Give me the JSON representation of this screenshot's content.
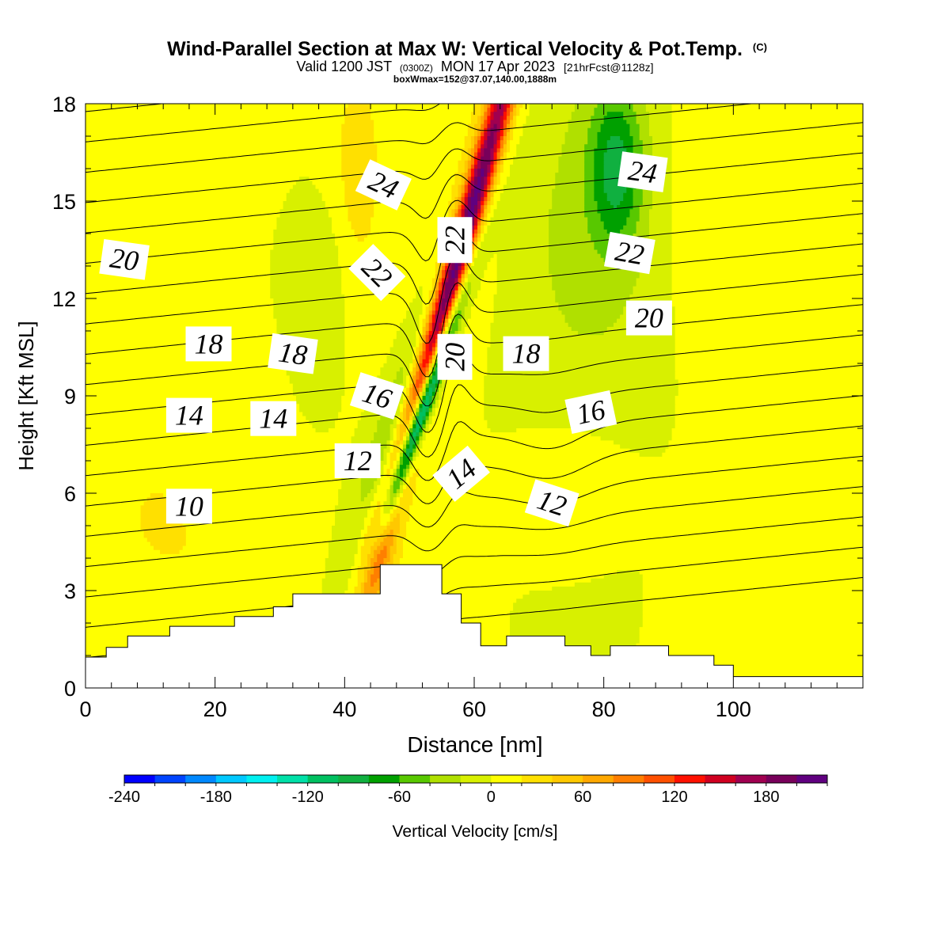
{
  "chart_data": {
    "type": "heatmap",
    "title": {
      "main": "Wind-Parallel Section at Max W: Vertical Velocity & Pot.Temp.",
      "copyright": "(C)",
      "valid_part1": "Valid 1200 JST",
      "valid_zulu": "(0300Z)",
      "valid_part2": "MON 17 Apr 2023",
      "forecast": "[21hrFcst@1128z]",
      "box": "boxWmax=152@37.07,140.00,1888m"
    },
    "xlabel": "Distance [nm]",
    "ylabel": "Height [Kft MSL]",
    "xlim": [
      0,
      120
    ],
    "ylim": [
      0,
      18
    ],
    "xticks": [
      "0",
      "20",
      "40",
      "60",
      "80",
      "100"
    ],
    "xtick_values": [
      0,
      20,
      40,
      60,
      80,
      100
    ],
    "yticks": [
      "0",
      "3",
      "6",
      "9",
      "12",
      "15",
      "18"
    ],
    "ytick_values": [
      0,
      3,
      6,
      9,
      12,
      15,
      18
    ],
    "colorbar": {
      "label": "Vertical Velocity [cm/s]",
      "min": -240,
      "max": 200,
      "step": 20,
      "tick_labels": [
        "-240",
        "-180",
        "-120",
        "-60",
        "0",
        "60",
        "120",
        "180"
      ],
      "tick_values": [
        -240,
        -180,
        -120,
        -60,
        0,
        60,
        120,
        180
      ],
      "colors": [
        "#0000ff",
        "#0044ff",
        "#0088ff",
        "#00c8ff",
        "#00f0f0",
        "#00e0a8",
        "#00c060",
        "#10b040",
        "#00a000",
        "#58c800",
        "#b0e000",
        "#d8f000",
        "#ffff00",
        "#ffe000",
        "#ffc800",
        "#ffa800",
        "#ff7f00",
        "#ff5000",
        "#ff1000",
        "#d00020",
        "#a00050",
        "#78005a",
        "#600080"
      ]
    },
    "field": {
      "background": 0,
      "features": [
        {
          "name": "lee-downdraft-core",
          "x": 51.5,
          "y": 8.3,
          "sx": 1.0,
          "sy": 2.6,
          "tilt": 0.34,
          "amp": -235
        },
        {
          "name": "lee-downdraft-envelope",
          "x": 51.0,
          "y": 9.5,
          "sx": 3.0,
          "sy": 4.6,
          "tilt": 0.34,
          "amp": -80
        },
        {
          "name": "main-updraft",
          "x": 56.5,
          "y": 12.5,
          "sx": 1.5,
          "sy": 6.2,
          "tilt": 0.28,
          "amp": 230
        },
        {
          "name": "updraft-fringe",
          "x": 57.0,
          "y": 13.0,
          "sx": 4.3,
          "sy": 7.5,
          "tilt": 0.28,
          "amp": 40
        },
        {
          "name": "upper-downdraft-east",
          "x": 82.0,
          "y": 16.0,
          "sx": 3.0,
          "sy": 1.8,
          "tilt": 0.0,
          "amp": -75
        },
        {
          "name": "upper-downdraft-broad",
          "x": 78.0,
          "y": 14.0,
          "sx": 9.0,
          "sy": 4.5,
          "tilt": 0.0,
          "amp": -28
        },
        {
          "name": "mid-downdraft-west",
          "x": 37.0,
          "y": 12.3,
          "sx": 2.2,
          "sy": 2.0,
          "tilt": 0.0,
          "amp": -22
        },
        {
          "name": "upper-updraft-west",
          "x": 42.0,
          "y": 16.0,
          "sx": 3.5,
          "sy": 3.0,
          "tilt": 0.0,
          "amp": 28
        },
        {
          "name": "low-updraft-west",
          "x": 20.0,
          "y": 3.5,
          "sx": 16.0,
          "sy": 2.2,
          "tilt": 0.0,
          "amp": 16
        },
        {
          "name": "mid-updraft-west",
          "x": 10.0,
          "y": 6.2,
          "sx": 7.0,
          "sy": 1.8,
          "tilt": 0.0,
          "amp": 13
        },
        {
          "name": "upper-updraft-east",
          "x": 104.0,
          "y": 14.5,
          "sx": 14.0,
          "sy": 4.0,
          "tilt": 0.0,
          "amp": 18
        },
        {
          "name": "lee-updraft-east",
          "x": 75.0,
          "y": 6.5,
          "sx": 7.0,
          "sy": 1.5,
          "tilt": 0.0,
          "amp": 16
        },
        {
          "name": "surface-updraft-east",
          "x": 112.0,
          "y": 3.0,
          "sx": 10.0,
          "sy": 3.0,
          "tilt": 0.0,
          "amp": 14
        },
        {
          "name": "foothill-updraft",
          "x": 45.0,
          "y": 4.2,
          "sx": 2.0,
          "sy": 1.0,
          "tilt": 0.0,
          "amp": 35
        }
      ]
    },
    "theta_contours": {
      "levels": [
        9,
        10,
        11,
        12,
        13,
        14,
        15,
        16,
        17,
        18,
        19,
        20,
        21,
        22,
        23,
        24,
        25,
        26,
        27
      ],
      "labels": [
        {
          "text": "10",
          "x": 16,
          "y": 5.6,
          "angle": 0
        },
        {
          "text": "12",
          "x": 42,
          "y": 7.0,
          "angle": 0
        },
        {
          "text": "12",
          "x": 72,
          "y": 5.7,
          "angle": 18
        },
        {
          "text": "14",
          "x": 16,
          "y": 8.4,
          "angle": 0
        },
        {
          "text": "14",
          "x": 29,
          "y": 8.3,
          "angle": 0
        },
        {
          "text": "14",
          "x": 58,
          "y": 6.6,
          "angle": -40
        },
        {
          "text": "16",
          "x": 45,
          "y": 9.0,
          "angle": 18
        },
        {
          "text": "16",
          "x": 78,
          "y": 8.5,
          "angle": -12
        },
        {
          "text": "18",
          "x": 19,
          "y": 10.6,
          "angle": 0
        },
        {
          "text": "18",
          "x": 32,
          "y": 10.3,
          "angle": 8
        },
        {
          "text": "18",
          "x": 68,
          "y": 10.3,
          "angle": 0
        },
        {
          "text": "20",
          "x": 6,
          "y": 13.2,
          "angle": 8
        },
        {
          "text": "20",
          "x": 57,
          "y": 10.2,
          "angle": -90
        },
        {
          "text": "20",
          "x": 87,
          "y": 11.4,
          "angle": 0
        },
        {
          "text": "22",
          "x": 45,
          "y": 12.8,
          "angle": 45
        },
        {
          "text": "22",
          "x": 57,
          "y": 13.8,
          "angle": -90
        },
        {
          "text": "22",
          "x": 84,
          "y": 13.4,
          "angle": 10
        },
        {
          "text": "24",
          "x": 46,
          "y": 15.5,
          "angle": 25
        },
        {
          "text": "24",
          "x": 86,
          "y": 15.9,
          "angle": 8
        }
      ]
    },
    "terrain_kft": [
      [
        0,
        0.95
      ],
      [
        3.2,
        0.95
      ],
      [
        3.2,
        1.25
      ],
      [
        6.5,
        1.25
      ],
      [
        6.5,
        1.6
      ],
      [
        13,
        1.6
      ],
      [
        13,
        1.9
      ],
      [
        23,
        1.9
      ],
      [
        23,
        2.2
      ],
      [
        29,
        2.2
      ],
      [
        29,
        2.5
      ],
      [
        32,
        2.5
      ],
      [
        32,
        2.9
      ],
      [
        45.5,
        2.9
      ],
      [
        45.5,
        3.8
      ],
      [
        55,
        3.8
      ],
      [
        55,
        2.9
      ],
      [
        58,
        2.9
      ],
      [
        58,
        2.0
      ],
      [
        61,
        2.0
      ],
      [
        61,
        1.3
      ],
      [
        65,
        1.3
      ],
      [
        65,
        1.6
      ],
      [
        74,
        1.6
      ],
      [
        74,
        1.3
      ],
      [
        78,
        1.3
      ],
      [
        78,
        1.0
      ],
      [
        81,
        1.0
      ],
      [
        81,
        1.3
      ],
      [
        90,
        1.3
      ],
      [
        90,
        1.0
      ],
      [
        97,
        1.0
      ],
      [
        97,
        0.7
      ],
      [
        100,
        0.7
      ],
      [
        100,
        0.35
      ],
      [
        120,
        0.35
      ]
    ]
  }
}
